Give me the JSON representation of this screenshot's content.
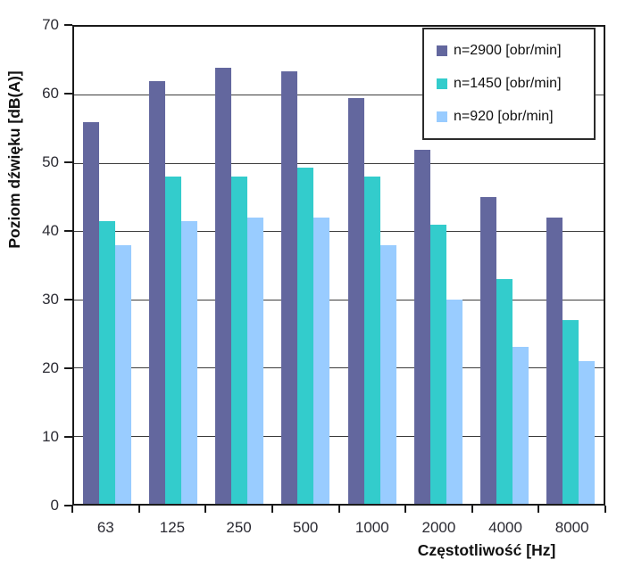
{
  "chart_data": {
    "type": "bar",
    "title": "",
    "xlabel": "Częstotliwość [Hz]",
    "ylabel": "Poziom dźwięku [dB(A)]",
    "categories": [
      "63",
      "125",
      "250",
      "500",
      "1000",
      "2000",
      "4000",
      "8000"
    ],
    "series": [
      {
        "name": "n=2900 [obr/min]",
        "color": "#63679E",
        "values": [
          56,
          62,
          64,
          63.5,
          59.5,
          52,
          45,
          42
        ]
      },
      {
        "name": "n=1450 [obr/min]",
        "color": "#33CCCC",
        "values": [
          41.5,
          48,
          48,
          49.3,
          48,
          41,
          33,
          27
        ]
      },
      {
        "name": "n=920 [obr/min]",
        "color": "#99CCFF",
        "values": [
          38,
          41.5,
          42,
          42,
          38,
          30,
          23,
          21
        ]
      }
    ],
    "ylim": [
      0,
      70
    ],
    "ytick_step": 10,
    "yticks": [
      "0",
      "10",
      "20",
      "30",
      "40",
      "50",
      "60",
      "70"
    ],
    "grid": "horizontal",
    "legend_position": "top-right",
    "colors": {
      "axis": "#1a1a1a",
      "grid": "#3c3c3c",
      "text": "#2b2b33",
      "background": "#ffffff"
    }
  }
}
